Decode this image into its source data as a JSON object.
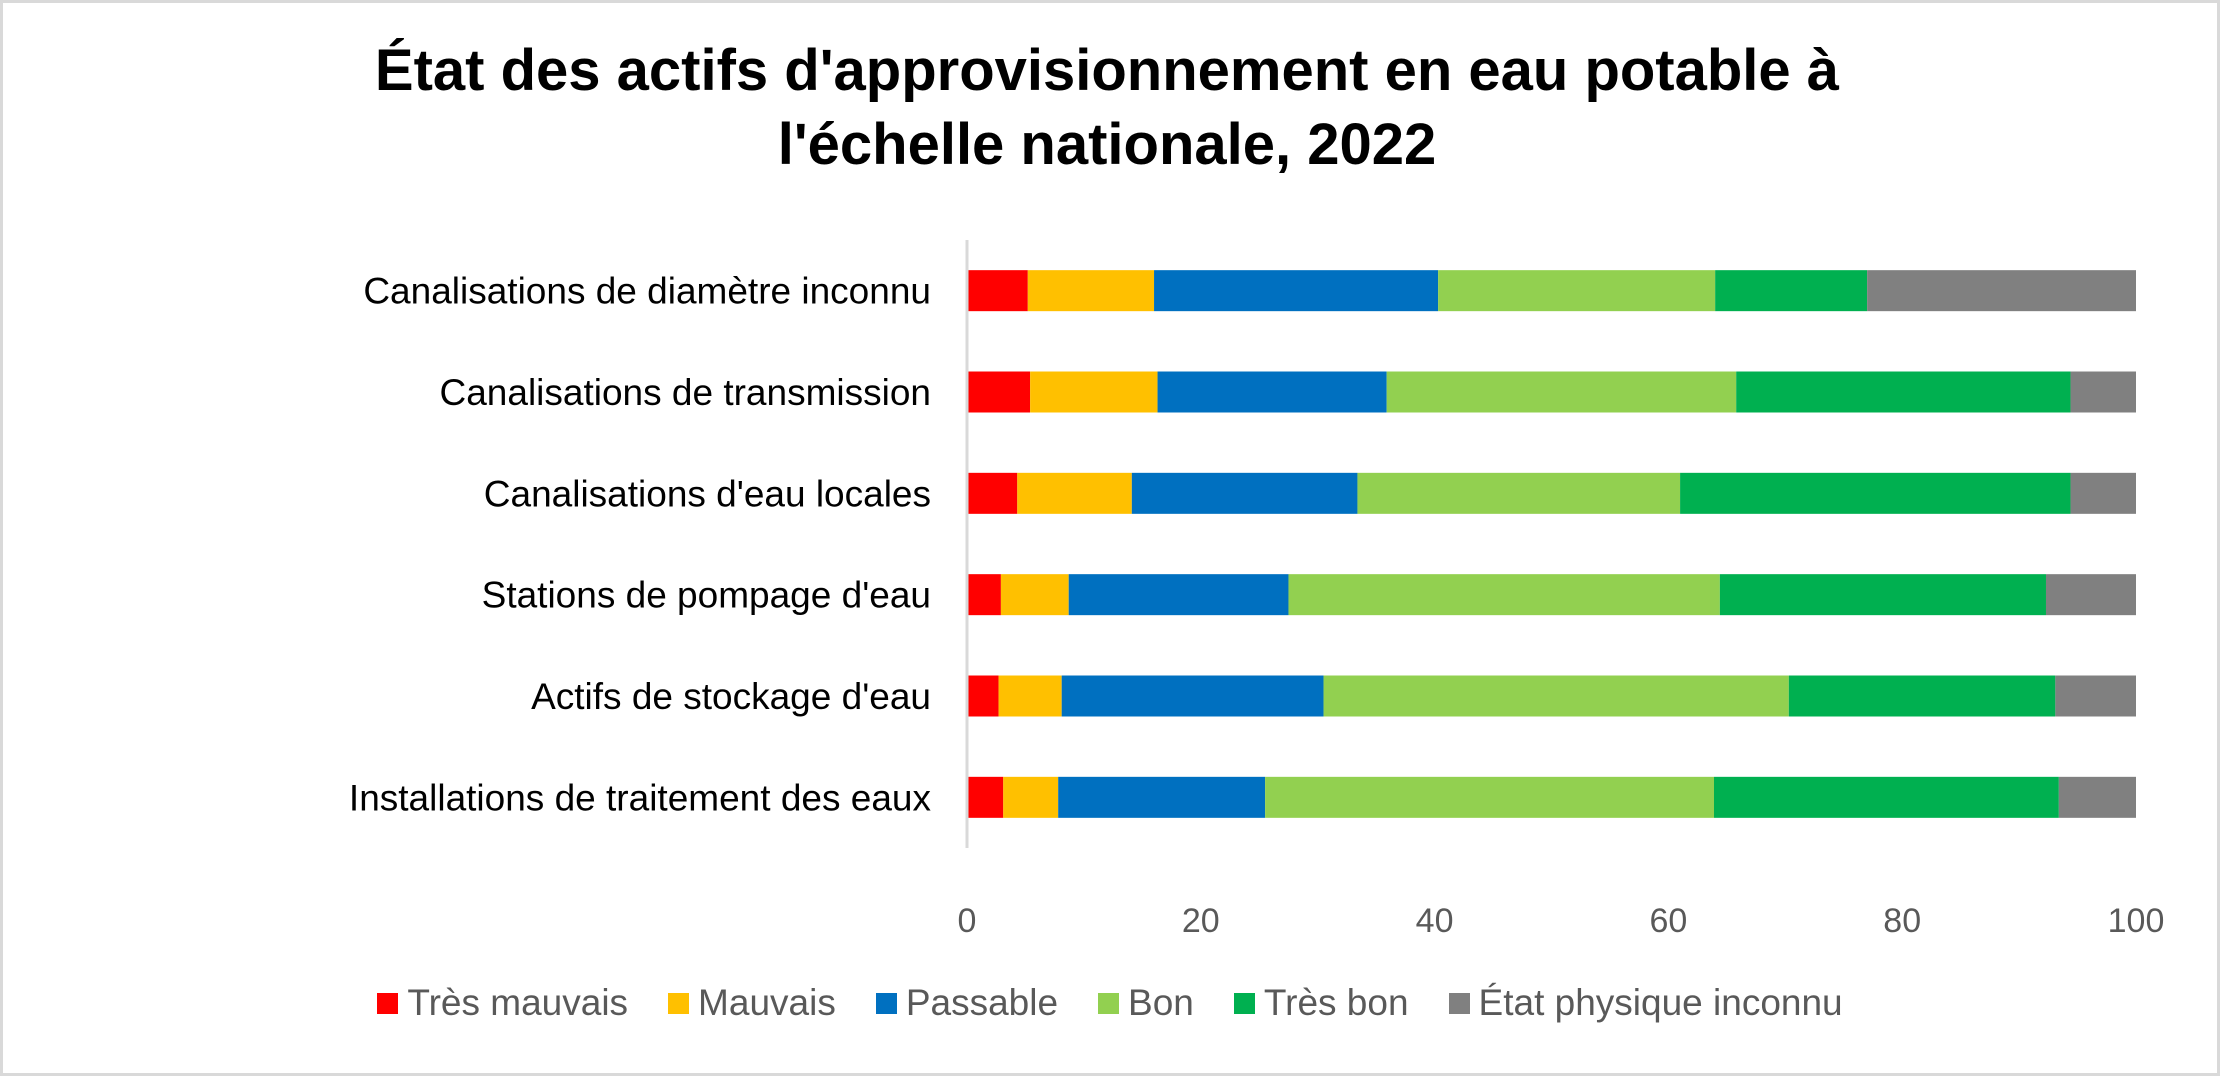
{
  "chart_data": {
    "type": "bar",
    "orientation": "horizontal",
    "stacked": true,
    "title": "État des actifs d'approvisionnement en eau potable à l'échelle nationale, 2022",
    "title_lines": [
      "État des actifs d'approvisionnement en eau potable à",
      "l'échelle nationale, 2022"
    ],
    "xlabel": "",
    "ylabel": "",
    "xlim": [
      0,
      100
    ],
    "x_ticks": [
      "0",
      "20",
      "40",
      "60",
      "80",
      "100"
    ],
    "grid": false,
    "legend_position": "bottom",
    "categories": [
      "Canalisations de diamètre inconnu",
      "Canalisations de transmission",
      "Canalisations d'eau locales",
      "Stations de pompage d'eau",
      "Actifs de stockage d'eau",
      "Installations de traitement des eaux"
    ],
    "series": [
      {
        "name": "Très mauvais",
        "color": "#ff0000",
        "values": [
          5.2,
          5.4,
          4.3,
          2.9,
          2.7,
          3.1
        ]
      },
      {
        "name": "Mauvais",
        "color": "#ffc000",
        "values": [
          10.8,
          10.9,
          9.8,
          5.8,
          5.4,
          4.7
        ]
      },
      {
        "name": "Passable",
        "color": "#0070c0",
        "values": [
          24.3,
          19.6,
          19.3,
          18.8,
          22.4,
          17.7
        ]
      },
      {
        "name": "Bon",
        "color": "#92d050",
        "values": [
          23.7,
          29.9,
          27.6,
          36.9,
          39.8,
          38.4
        ]
      },
      {
        "name": "Très bon",
        "color": "#00b050",
        "values": [
          13.0,
          28.6,
          33.4,
          27.9,
          22.8,
          29.5
        ]
      },
      {
        "name": "État physique inconnu",
        "color": "#808080",
        "values": [
          23.0,
          5.6,
          5.6,
          7.7,
          6.9,
          6.6
        ]
      }
    ]
  }
}
